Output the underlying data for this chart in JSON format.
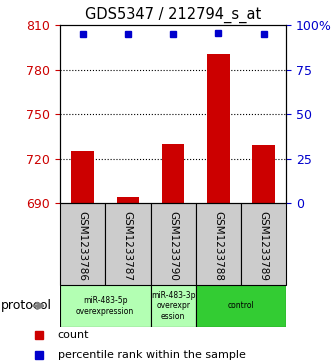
{
  "title": "GDS5347 / 212794_s_at",
  "samples": [
    "GSM1233786",
    "GSM1233787",
    "GSM1233790",
    "GSM1233788",
    "GSM1233789"
  ],
  "bar_values": [
    725,
    694,
    730,
    791,
    729
  ],
  "percentile_values": [
    95,
    95,
    95,
    96,
    95
  ],
  "bar_color": "#cc0000",
  "dot_color": "#0000cc",
  "left_ylim": [
    690,
    810
  ],
  "left_yticks": [
    690,
    720,
    750,
    780,
    810
  ],
  "right_ylim": [
    0,
    100
  ],
  "right_yticks": [
    0,
    25,
    50,
    75,
    100
  ],
  "right_yticklabels": [
    "0",
    "25",
    "50",
    "75",
    "100%"
  ],
  "left_ytick_color": "#cc0000",
  "right_ytick_color": "#0000cc",
  "group_configs": [
    [
      0,
      2,
      "miR-483-5p\noverexpression",
      "#b3ffb3"
    ],
    [
      2,
      3,
      "miR-483-3p\noverexpr\nession",
      "#b3ffb3"
    ],
    [
      3,
      5,
      "control",
      "#33cc33"
    ]
  ],
  "sample_box_color": "#cccccc",
  "protocol_label": "protocol",
  "legend_count_label": "count",
  "legend_percentile_label": "percentile rank within the sample",
  "bar_width": 0.5,
  "grid_yticks": [
    720,
    750,
    780
  ]
}
